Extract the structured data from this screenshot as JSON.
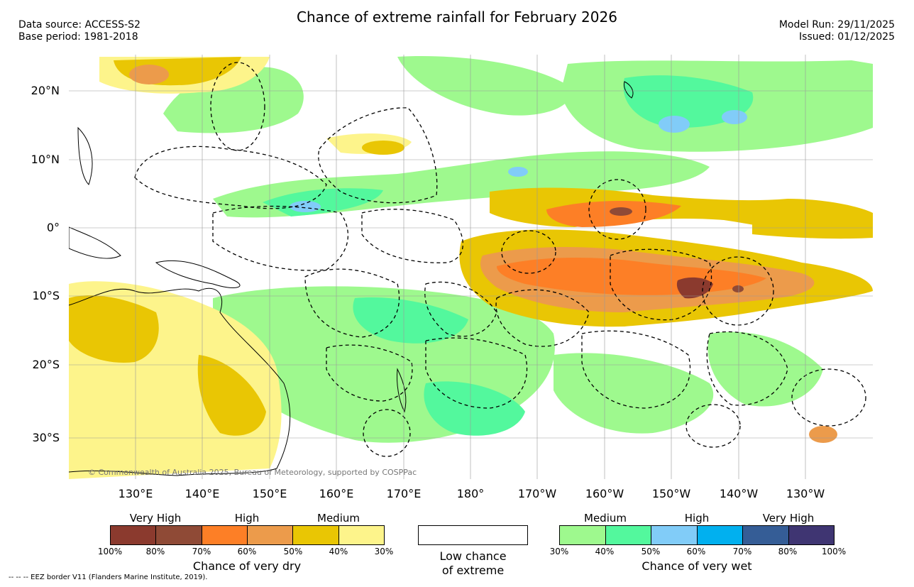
{
  "title": "Chance of extreme rainfall for February 2026",
  "header_left": {
    "source": "Data source: ACCESS-S2",
    "base": "Base period: 1981-2018"
  },
  "header_right": {
    "run": "Model Run: 29/11/2025",
    "issued": "Issued: 01/12/2025"
  },
  "map": {
    "lon_labels": [
      "130°E",
      "140°E",
      "150°E",
      "160°E",
      "170°E",
      "180°",
      "170°W",
      "160°W",
      "150°W",
      "140°W",
      "130°W"
    ],
    "lat_labels": [
      "20°N",
      "10°N",
      "0°",
      "10°S",
      "20°S",
      "30°S"
    ],
    "copyright": "© Commonwealth of Australia 2025, Bureau of Meteorology, supported by COSPPac"
  },
  "legend": {
    "dry": {
      "levels": [
        "Very High",
        "High",
        "Medium"
      ],
      "colors": [
        "#8b3a2e",
        "#8f4a36",
        "#fd7f26",
        "#ec9b4b",
        "#e9c604",
        "#fdf48b"
      ],
      "ticks": [
        "100%",
        "80%",
        "70%",
        "60%",
        "50%",
        "40%",
        "30%"
      ],
      "title": "Chance of very dry"
    },
    "low": {
      "line1": "Low chance",
      "line2": "of extreme"
    },
    "wet": {
      "levels": [
        "Medium",
        "High",
        "Very High"
      ],
      "colors": [
        "#9ef98e",
        "#53f89d",
        "#81ccf8",
        "#01b0ef",
        "#355d96",
        "#3f3572"
      ],
      "ticks": [
        "30%",
        "40%",
        "50%",
        "60%",
        "70%",
        "80%",
        "100%"
      ],
      "title": "Chance of very wet"
    }
  },
  "footnote": "-- -- -- EEZ border V11 (Flanders Marine Institute, 2019)."
}
